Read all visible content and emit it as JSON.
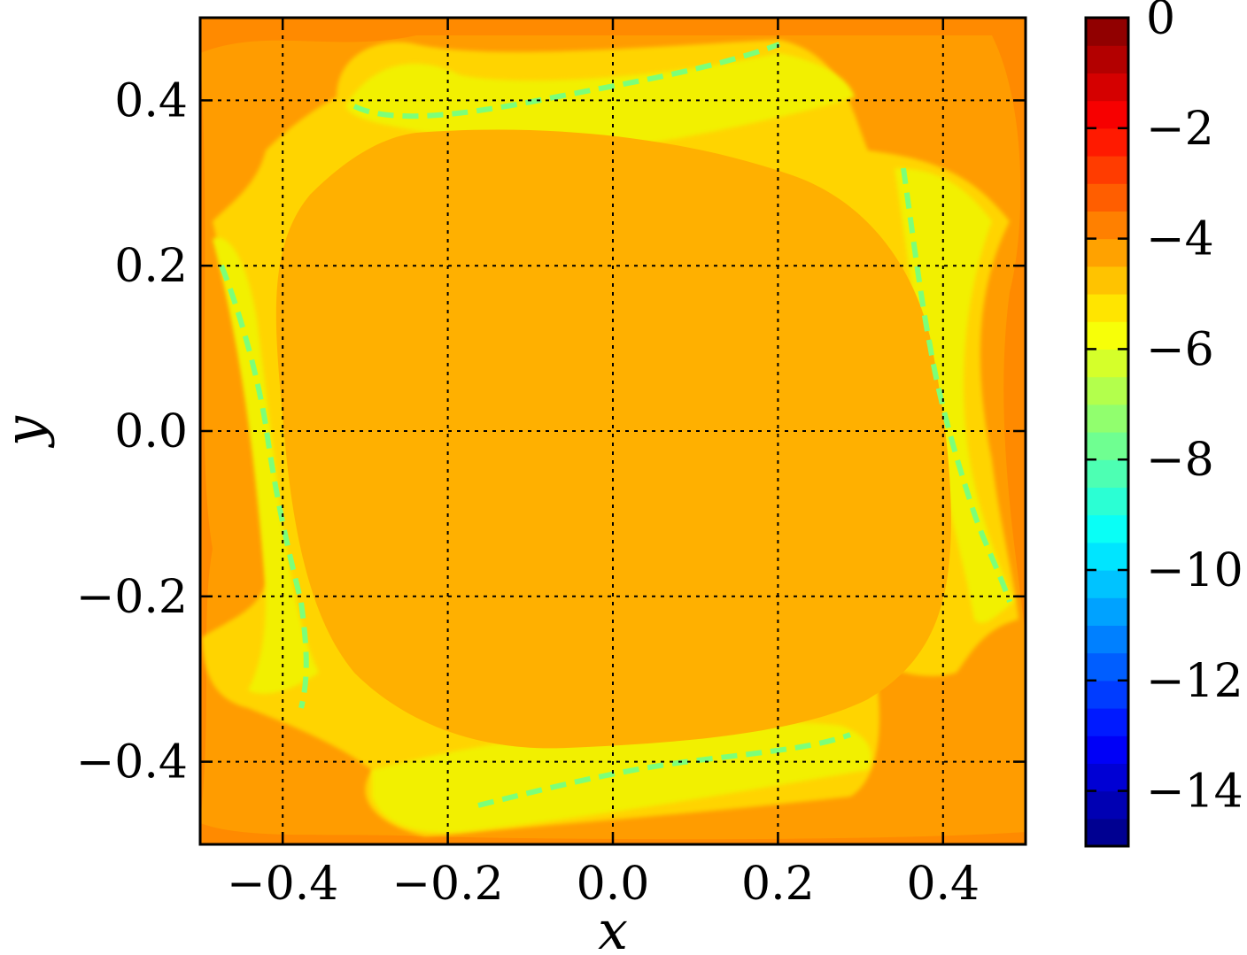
{
  "chart_data": {
    "type": "heatmap",
    "title": "",
    "xlabel": "x",
    "ylabel": "y",
    "xlim": [
      -0.5,
      0.5
    ],
    "ylim": [
      -0.5,
      0.5
    ],
    "x_ticks": [
      -0.4,
      -0.2,
      0.0,
      0.2,
      0.4
    ],
    "y_ticks": [
      -0.4,
      -0.2,
      0.0,
      0.2,
      0.4
    ],
    "x_tick_labels": [
      "−0.4",
      "−0.2",
      "0.0",
      "0.2",
      "0.4"
    ],
    "y_tick_labels": [
      "0.4",
      "0.2",
      "0.0",
      "−0.2",
      "−0.4"
    ],
    "grid": true,
    "grid_style": "dotted",
    "colorbar": {
      "range": [
        -15,
        0
      ],
      "levels": 30,
      "colormap": "jet",
      "ticks": [
        0,
        -2,
        -4,
        -6,
        -8,
        -10,
        -12,
        -14
      ],
      "tick_labels": [
        "0",
        "−2",
        "−4",
        "−6",
        "−8",
        "−10",
        "−12",
        "−14"
      ]
    },
    "field_description_levels": {
      "central_square_region": -4.25,
      "inner_ring_bands": -4.75,
      "separatrix_ridge_minimum": -7.5,
      "outer_corner_regions": -3.5
    },
    "colors": {
      "level_-3.5": "#ff8000",
      "level_-4.0": "#ff9c00",
      "level_-4.25": "#ffb000",
      "level_-4.75": "#ffd800",
      "level_-5.25": "#f4f000",
      "level_-6.5": "#c8ff33",
      "level_-7.5": "#7cff79",
      "frame": "#000000"
    }
  }
}
